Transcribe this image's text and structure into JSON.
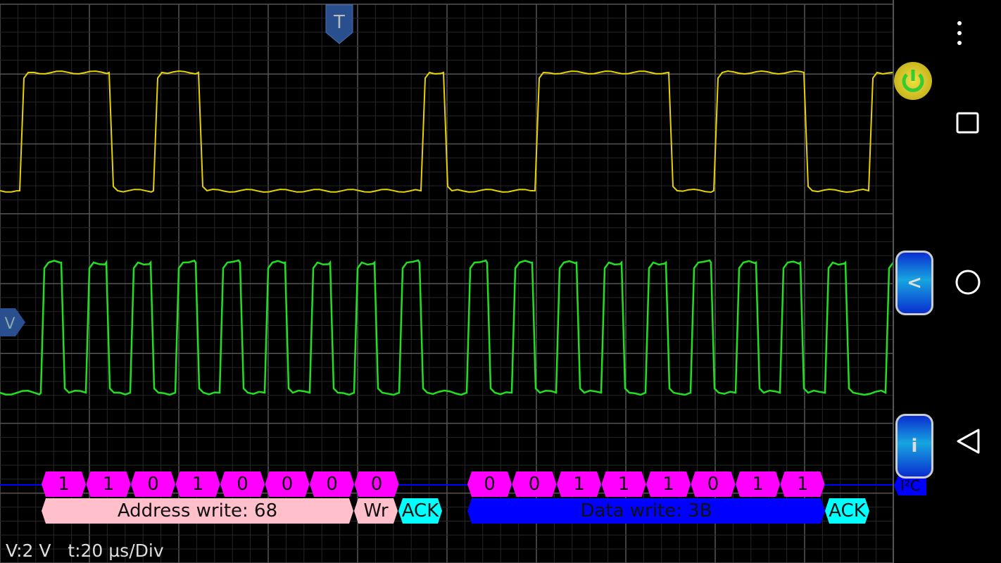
{
  "scope": {
    "status": "V:2 V   t:20 µs/Div",
    "trigger_marker": "T",
    "level_marker": "V",
    "channel_colors": {
      "ch1": "#e6d200",
      "ch2": "#20e020",
      "decoder_line": "#0000ff"
    }
  },
  "decoder": {
    "protocol": "I²C",
    "address_bits": [
      "1",
      "1",
      "0",
      "1",
      "0",
      "0",
      "0",
      "0"
    ],
    "address_label": "Address write: 68",
    "rw_label": "Wr",
    "ack1": "ACK",
    "data_bits": [
      "0",
      "0",
      "1",
      "1",
      "1",
      "0",
      "1",
      "1"
    ],
    "data_label": "Data write: 3B",
    "ack2": "ACK",
    "colors": {
      "bits": "#ff00ff",
      "address": "#ffc0cb",
      "data": "#0000ff",
      "ack": "#00ffff"
    }
  },
  "side": {
    "collapse_label": "<",
    "info_label": "i"
  },
  "icons": {
    "power": "power-icon",
    "menu": "more-vert-icon",
    "recents": "square-icon",
    "home": "circle-icon",
    "back": "triangle-back-icon"
  }
}
